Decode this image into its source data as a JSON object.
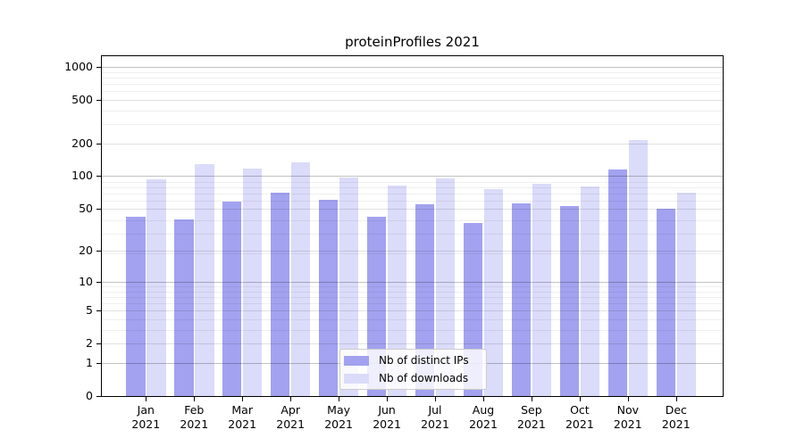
{
  "chart_data": {
    "type": "bar",
    "title": "proteinProfiles 2021",
    "categories": [
      "Jan",
      "Feb",
      "Mar",
      "Apr",
      "May",
      "Jun",
      "Jul",
      "Aug",
      "Sep",
      "Oct",
      "Nov",
      "Dec"
    ],
    "year_label": "2021",
    "series": [
      {
        "name": "Nb of distinct IPs",
        "color": "#a2a2f0",
        "values": [
          42,
          40,
          58,
          70,
          60,
          42,
          55,
          37,
          56,
          53,
          115,
          50
        ]
      },
      {
        "name": "Nb of downloads",
        "color": "#dbdbfa",
        "values": [
          94,
          130,
          117,
          135,
          98,
          82,
          96,
          76,
          85,
          81,
          215,
          71
        ]
      }
    ],
    "yticks": [
      0,
      1,
      2,
      5,
      10,
      20,
      50,
      100,
      200,
      500,
      1000
    ],
    "yscale": "log1p",
    "ylim": [
      0,
      1250
    ],
    "xlabel": "",
    "ylabel": "",
    "grid": true,
    "legend_position": "lower center"
  },
  "styles": {
    "grid_major_color": "#c2c2c2",
    "grid_mid_color": "#e1e1e1",
    "grid_minor_color": "#efefef",
    "spine_color": "#000000",
    "text_color": "#000000",
    "legend_border_color": "#cccccc"
  }
}
